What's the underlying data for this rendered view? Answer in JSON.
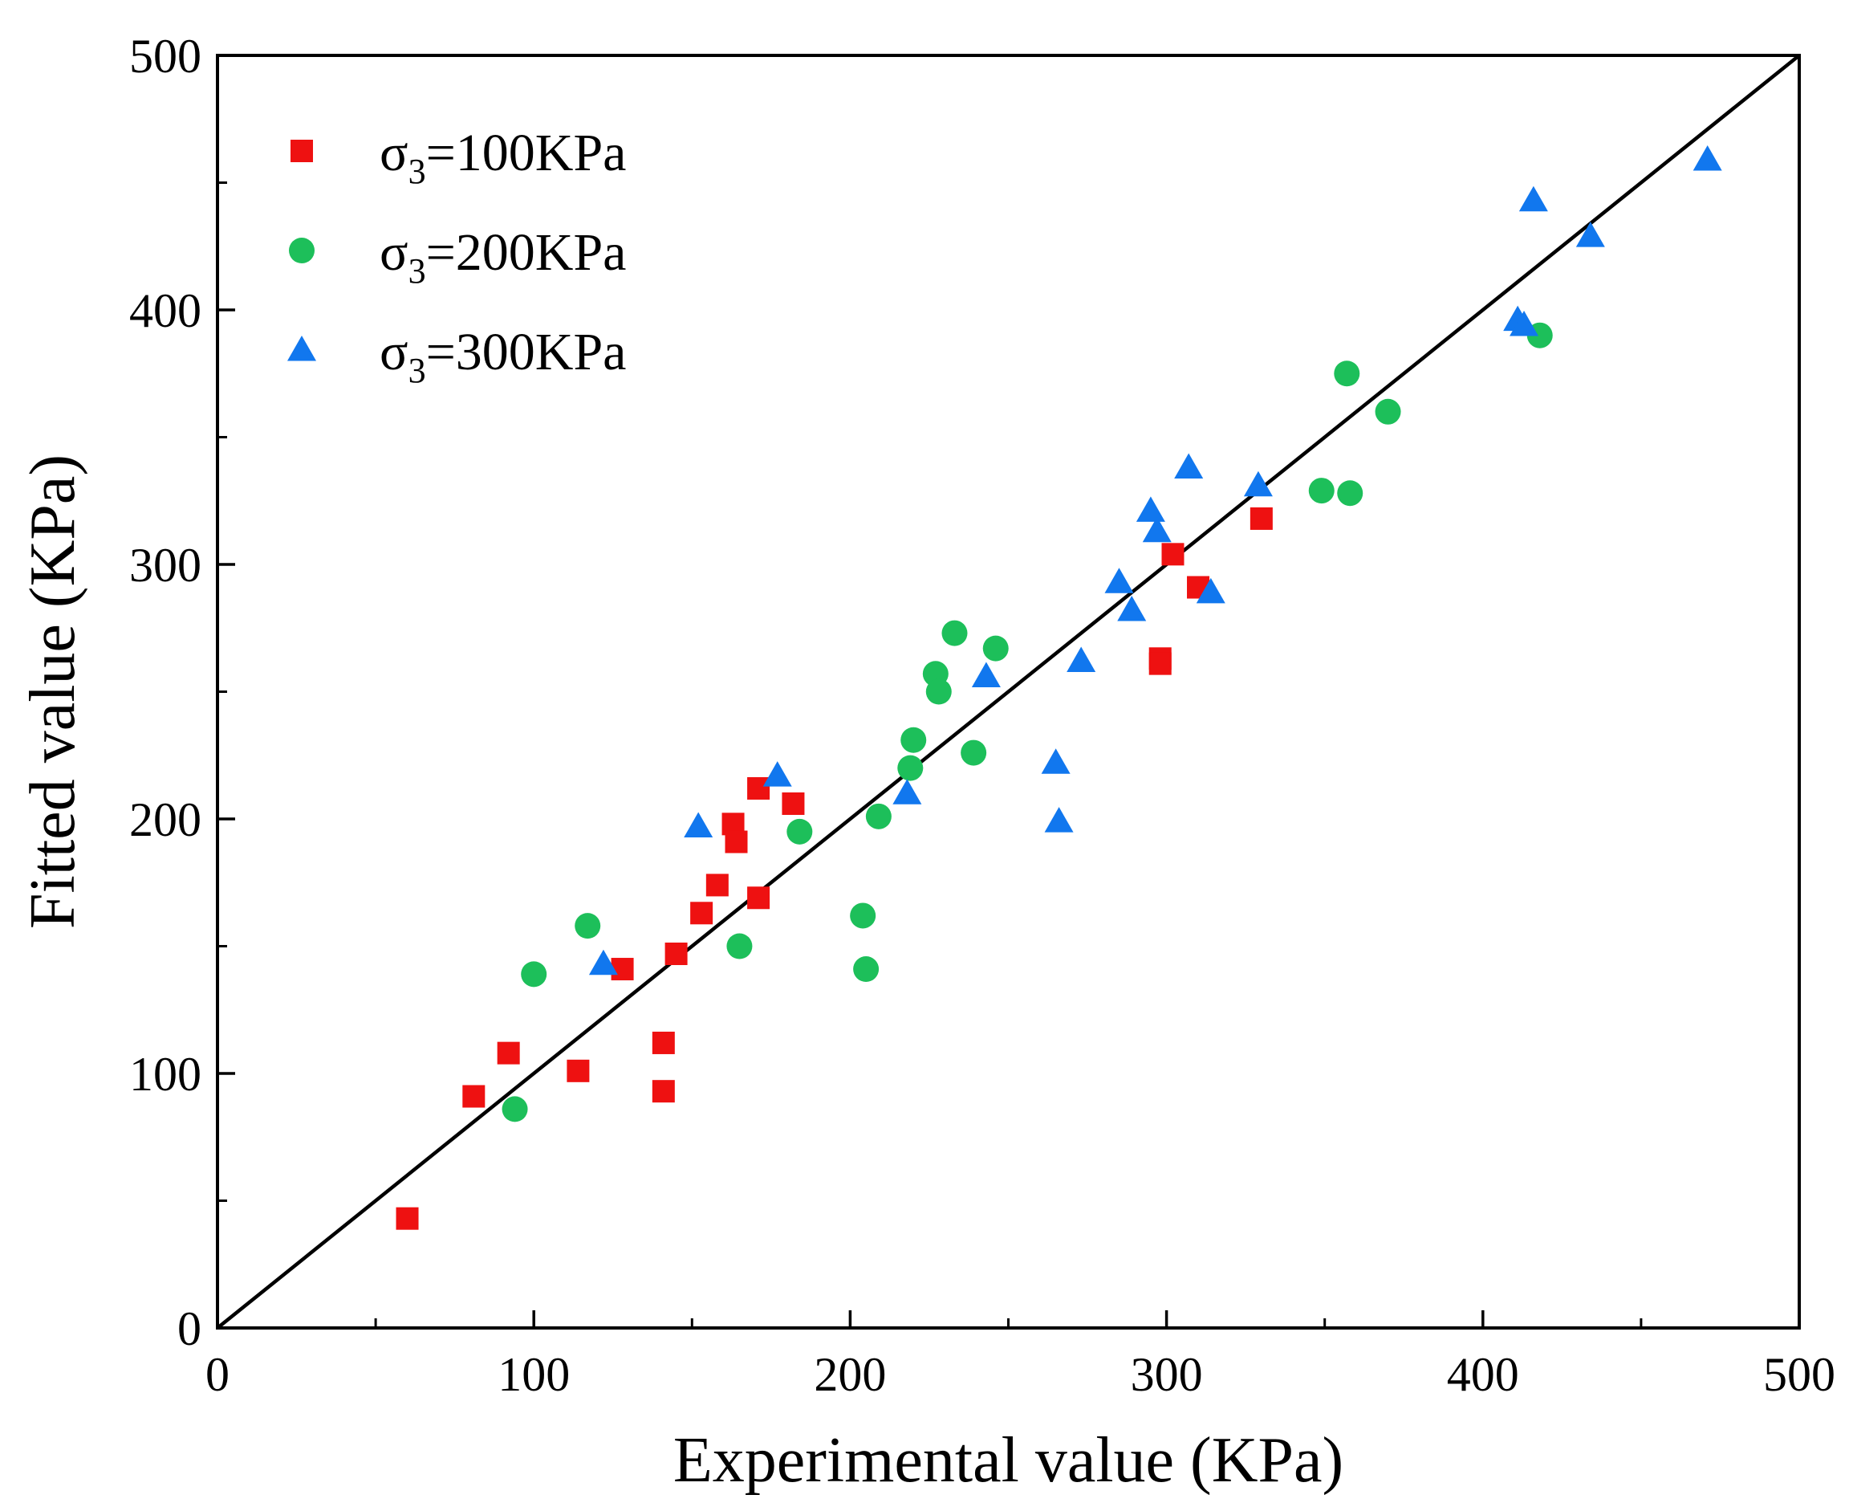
{
  "chart_data": {
    "type": "scatter",
    "title": "",
    "xlabel": "Experimental value (KPa)",
    "ylabel": "Fitted value (KPa)",
    "xlim": [
      0,
      500
    ],
    "ylim": [
      0,
      500
    ],
    "xticks": [
      "0",
      "100",
      "200",
      "300",
      "400",
      "500"
    ],
    "yticks": [
      "0",
      "100",
      "200",
      "300",
      "400",
      "500"
    ],
    "grid": false,
    "legend": "top-left",
    "reference_line": {
      "from": [
        0,
        0
      ],
      "to": [
        500,
        500
      ],
      "color": "#000000"
    },
    "series": [
      {
        "name": "σ3=100KPa",
        "label_base": "σ",
        "label_sub": "3",
        "label_rest": "=100KPa",
        "marker": "square",
        "color": "#ee1111",
        "points": [
          [
            60,
            43
          ],
          [
            81,
            91
          ],
          [
            92,
            108
          ],
          [
            114,
            101
          ],
          [
            128,
            141
          ],
          [
            141,
            112
          ],
          [
            141,
            93
          ],
          [
            145,
            147
          ],
          [
            153,
            163
          ],
          [
            158,
            174
          ],
          [
            163,
            198
          ],
          [
            164,
            191
          ],
          [
            171,
            169
          ],
          [
            171,
            212
          ],
          [
            182,
            206
          ],
          [
            298,
            263
          ],
          [
            298,
            261
          ],
          [
            302,
            304
          ],
          [
            310,
            291
          ],
          [
            330,
            318
          ]
        ]
      },
      {
        "name": "σ3=200KPa",
        "label_base": "σ",
        "label_sub": "3",
        "label_rest": "=200KPa",
        "marker": "circle",
        "color": "#1dbf5a",
        "points": [
          [
            94,
            86
          ],
          [
            100,
            139
          ],
          [
            117,
            158
          ],
          [
            165,
            150
          ],
          [
            184,
            195
          ],
          [
            204,
            162
          ],
          [
            205,
            141
          ],
          [
            209,
            201
          ],
          [
            219,
            220
          ],
          [
            220,
            231
          ],
          [
            227,
            257
          ],
          [
            228,
            250
          ],
          [
            233,
            273
          ],
          [
            239,
            226
          ],
          [
            246,
            267
          ],
          [
            349,
            329
          ],
          [
            357,
            375
          ],
          [
            358,
            328
          ],
          [
            370,
            360
          ],
          [
            418,
            390
          ]
        ]
      },
      {
        "name": "σ3=300KPa",
        "label_base": "σ",
        "label_sub": "3",
        "label_rest": "=300KPa",
        "marker": "triangle",
        "color": "#1177ee",
        "points": [
          [
            122,
            143
          ],
          [
            152,
            197
          ],
          [
            177,
            217
          ],
          [
            218,
            210
          ],
          [
            243,
            256
          ],
          [
            265,
            222
          ],
          [
            266,
            199
          ],
          [
            273,
            262
          ],
          [
            285,
            293
          ],
          [
            289,
            282
          ],
          [
            295,
            321
          ],
          [
            297,
            313
          ],
          [
            307,
            338
          ],
          [
            314,
            289
          ],
          [
            329,
            331
          ],
          [
            411,
            396
          ],
          [
            413,
            394
          ],
          [
            416,
            443
          ],
          [
            434,
            429
          ],
          [
            471,
            459
          ]
        ]
      }
    ]
  }
}
